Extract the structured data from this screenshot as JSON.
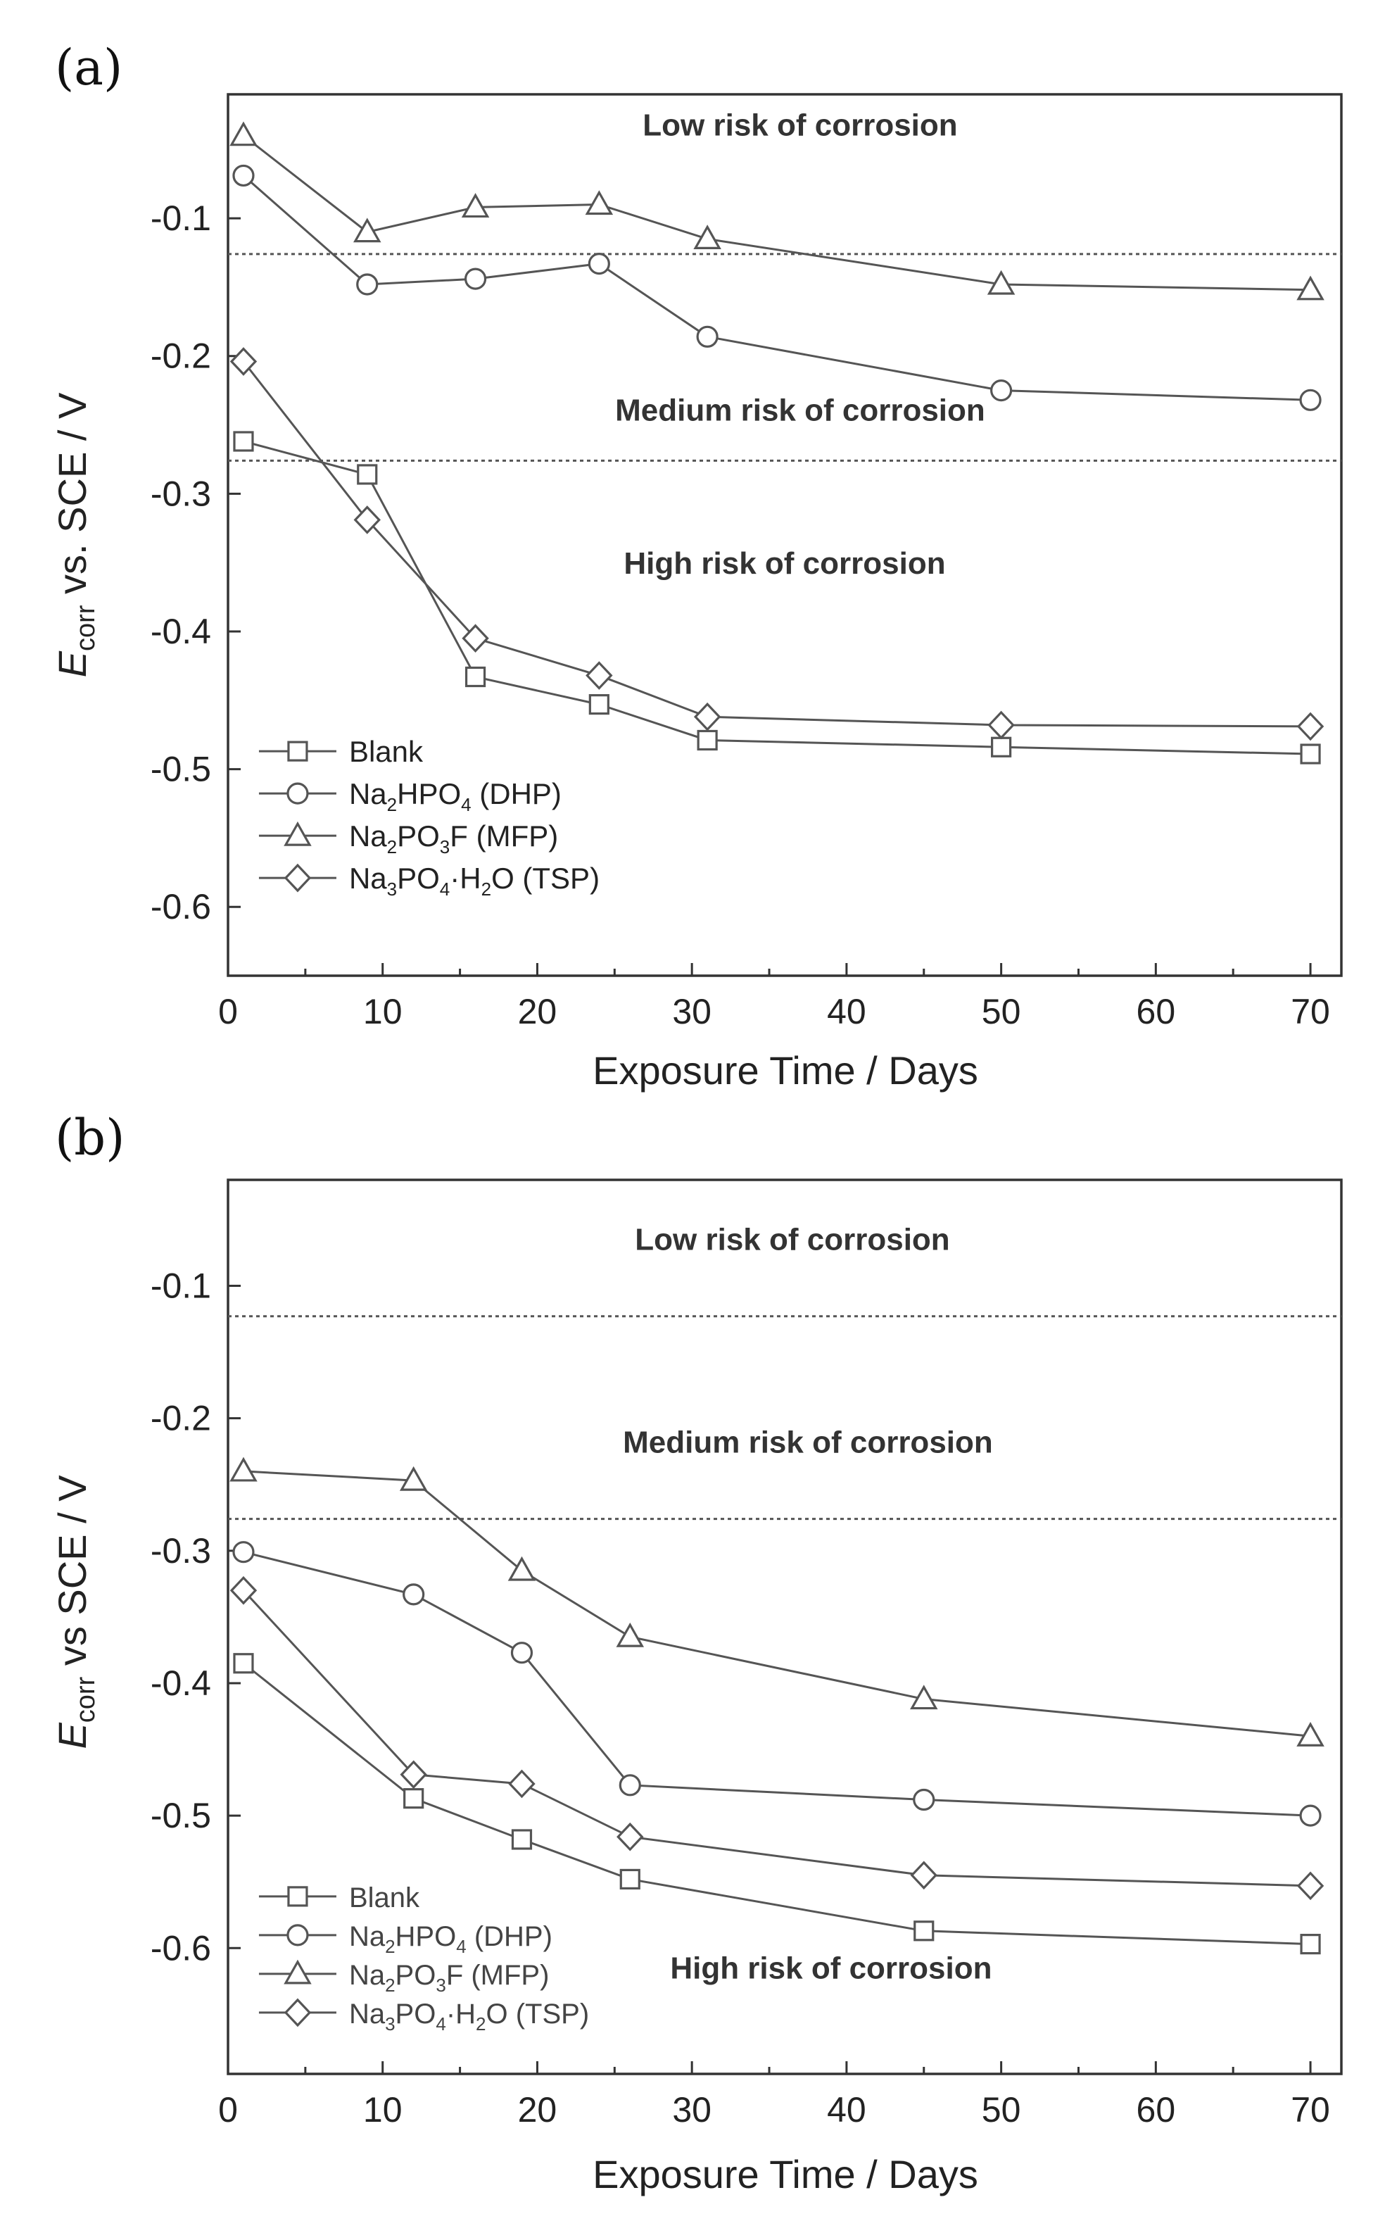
{
  "chart_data": [
    {
      "type": "line",
      "panel_label": "(a)",
      "xlabel": "Exposure Time / Days",
      "ylabel": {
        "prefix": "E",
        "subscript": "corr",
        "suffix": " vs. SCE / V"
      },
      "xlim": [
        0,
        72
      ],
      "ylim": [
        -0.65,
        -0.01
      ],
      "xticks": [
        "0",
        "10",
        "20",
        "30",
        "40",
        "50",
        "60",
        "70"
      ],
      "xtick_values": [
        0,
        10,
        20,
        30,
        40,
        50,
        60,
        70
      ],
      "yticks": [
        "-0.1",
        "-0.2",
        "-0.3",
        "-0.4",
        "-0.5",
        "-0.6"
      ],
      "ytick_values": [
        -0.1,
        -0.2,
        -0.3,
        -0.4,
        -0.5,
        -0.6
      ],
      "thresholds": [
        -0.126,
        -0.276
      ],
      "regions": [
        {
          "text": "Low risk of corrosion",
          "x": 37,
          "y": -0.04
        },
        {
          "text": "Medium risk of corrosion",
          "x": 37,
          "y": -0.247
        },
        {
          "text": "High risk of corrosion",
          "x": 36,
          "y": -0.358
        }
      ],
      "legend": {
        "x": 2,
        "y": -0.487
      },
      "series": [
        {
          "name": "Blank",
          "marker": "square",
          "legend": [
            {
              "t": "Blank"
            }
          ],
          "x": [
            1,
            9,
            16,
            24,
            31,
            50,
            70
          ],
          "y": [
            -0.262,
            -0.286,
            -0.433,
            -0.453,
            -0.479,
            -0.484,
            -0.489
          ]
        },
        {
          "name": "Na2HPO4 (DHP)",
          "marker": "circle",
          "legend": [
            {
              "t": "Na"
            },
            {
              "t": "2",
              "sub": true
            },
            {
              "t": "HPO"
            },
            {
              "t": "4",
              "sub": true
            },
            {
              "t": " (DHP)"
            }
          ],
          "x": [
            1,
            9,
            16,
            24,
            31,
            50,
            70
          ],
          "y": [
            -0.069,
            -0.148,
            -0.144,
            -0.133,
            -0.186,
            -0.225,
            -0.232
          ]
        },
        {
          "name": "Na2PO3F (MFP)",
          "marker": "triangle",
          "legend": [
            {
              "t": "Na"
            },
            {
              "t": "2",
              "sub": true
            },
            {
              "t": "PO"
            },
            {
              "t": "3",
              "sub": true
            },
            {
              "t": "F (MFP)"
            }
          ],
          "x": [
            1,
            9,
            16,
            24,
            31,
            50,
            70
          ],
          "y": [
            -0.04,
            -0.11,
            -0.092,
            -0.09,
            -0.115,
            -0.148,
            -0.152
          ]
        },
        {
          "name": "Na3PO4·H2O (TSP)",
          "marker": "diamond",
          "legend": [
            {
              "t": "Na"
            },
            {
              "t": "3",
              "sub": true
            },
            {
              "t": "PO"
            },
            {
              "t": "4",
              "sub": true
            },
            {
              "t": "·H"
            },
            {
              "t": "2",
              "sub": true
            },
            {
              "t": "O (TSP)"
            }
          ],
          "x": [
            1,
            9,
            16,
            24,
            31,
            50,
            70
          ],
          "y": [
            -0.204,
            -0.319,
            -0.405,
            -0.432,
            -0.462,
            -0.468,
            -0.469
          ]
        }
      ]
    },
    {
      "type": "line",
      "panel_label": "(b)",
      "xlabel": "Exposure Time / Days",
      "ylabel": {
        "prefix": "E",
        "subscript": "corr",
        "suffix": " vs SCE / V"
      },
      "xlim": [
        0,
        72
      ],
      "ylim": [
        -0.695,
        -0.02
      ],
      "xticks": [
        "0",
        "10",
        "20",
        "30",
        "40",
        "50",
        "60",
        "70"
      ],
      "xtick_values": [
        0,
        10,
        20,
        30,
        40,
        50,
        60,
        70
      ],
      "yticks": [
        "-0.1",
        "-0.2",
        "-0.3",
        "-0.4",
        "-0.5",
        "-0.6"
      ],
      "ytick_values": [
        -0.1,
        -0.2,
        -0.3,
        -0.4,
        -0.5,
        -0.6
      ],
      "thresholds": [
        -0.123,
        -0.276
      ],
      "regions": [
        {
          "text": "Low risk of corrosion",
          "x": 36.5,
          "y": -0.073
        },
        {
          "text": "Medium risk of corrosion",
          "x": 37.5,
          "y": -0.226
        },
        {
          "text": "High risk of corrosion",
          "x": 39,
          "y": -0.623
        }
      ],
      "legend": {
        "x": 2,
        "y": -0.561
      },
      "series": [
        {
          "name": "Blank",
          "marker": "square",
          "legend": [
            {
              "t": "Blank"
            }
          ],
          "x": [
            1,
            12,
            19,
            26,
            45,
            70
          ],
          "y": [
            -0.385,
            -0.487,
            -0.518,
            -0.548,
            -0.587,
            -0.597
          ]
        },
        {
          "name": "Na2HPO4 (DHP)",
          "marker": "circle",
          "legend": [
            {
              "t": "Na"
            },
            {
              "t": "2",
              "sub": true
            },
            {
              "t": "HPO"
            },
            {
              "t": "4",
              "sub": true
            },
            {
              "t": " (DHP)"
            }
          ],
          "x": [
            1,
            12,
            19,
            26,
            45,
            70
          ],
          "y": [
            -0.301,
            -0.333,
            -0.377,
            -0.477,
            -0.488,
            -0.5
          ]
        },
        {
          "name": "Na2PO3F (MFP)",
          "marker": "triangle",
          "legend": [
            {
              "t": "Na"
            },
            {
              "t": "2",
              "sub": true
            },
            {
              "t": "PO"
            },
            {
              "t": "3",
              "sub": true
            },
            {
              "t": "F  (MFP)"
            }
          ],
          "x": [
            1,
            12,
            19,
            26,
            45,
            70
          ],
          "y": [
            -0.24,
            -0.247,
            -0.315,
            -0.365,
            -0.412,
            -0.44
          ]
        },
        {
          "name": "Na3PO4·H2O (TSP)",
          "marker": "diamond",
          "legend": [
            {
              "t": "Na"
            },
            {
              "t": "3",
              "sub": true
            },
            {
              "t": "PO"
            },
            {
              "t": "4",
              "sub": true
            },
            {
              "t": "·H"
            },
            {
              "t": "2",
              "sub": true
            },
            {
              "t": "O (TSP)"
            }
          ],
          "x": [
            1,
            12,
            19,
            26,
            45,
            70
          ],
          "y": [
            -0.33,
            -0.469,
            -0.476,
            -0.516,
            -0.545,
            -0.553
          ]
        }
      ]
    }
  ]
}
